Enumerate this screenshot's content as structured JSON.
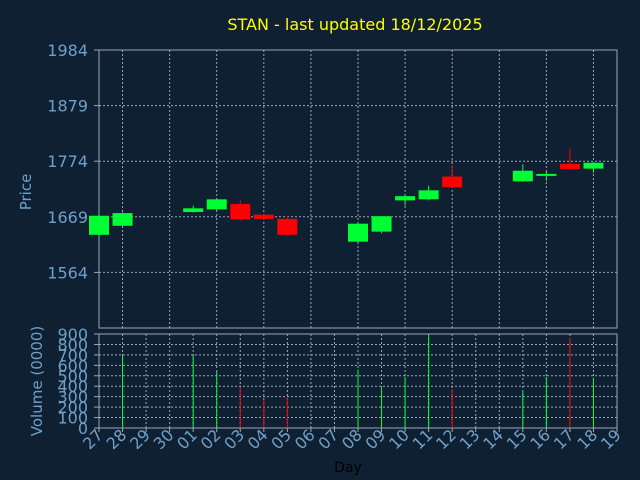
{
  "colors": {
    "background": "#0f2033",
    "title": "#ffff00",
    "axis_text": "#6fa0c8",
    "grid": "#9aa8b8",
    "up": "#00ff33",
    "down": "#ff0000"
  },
  "chart_data": [
    {
      "type": "candlestick",
      "title": "STAN - last updated 18/12/2025",
      "xlabel": "",
      "ylabel": "Price",
      "ylim": [
        1459,
        1984
      ],
      "yticks": [
        1564,
        1669,
        1774,
        1879,
        1984
      ],
      "grid": true,
      "x": [
        "27",
        "28",
        "29",
        "30",
        "01",
        "02",
        "03",
        "04",
        "05",
        "06",
        "07",
        "08",
        "09",
        "10",
        "11",
        "12",
        "13",
        "14",
        "15",
        "16",
        "17",
        "18",
        "19"
      ],
      "candles": [
        {
          "day": "27",
          "open": 1635,
          "close": 1671,
          "high": 1673,
          "low": 1633
        },
        {
          "day": "28",
          "open": 1652,
          "close": 1676,
          "high": 1677,
          "low": 1651
        },
        {
          "day": "01",
          "open": 1678,
          "close": 1685,
          "high": 1690,
          "low": 1677
        },
        {
          "day": "02",
          "open": 1683,
          "close": 1702,
          "high": 1704,
          "low": 1681
        },
        {
          "day": "03",
          "open": 1693,
          "close": 1664,
          "high": 1700,
          "low": 1662
        },
        {
          "day": "04",
          "open": 1673,
          "close": 1665,
          "high": 1674,
          "low": 1663
        },
        {
          "day": "05",
          "open": 1665,
          "close": 1635,
          "high": 1671,
          "low": 1634
        },
        {
          "day": "08",
          "open": 1622,
          "close": 1656,
          "high": 1659,
          "low": 1620
        },
        {
          "day": "09",
          "open": 1641,
          "close": 1670,
          "high": 1671,
          "low": 1638
        },
        {
          "day": "10",
          "open": 1700,
          "close": 1708,
          "high": 1710,
          "low": 1690
        },
        {
          "day": "11",
          "open": 1702,
          "close": 1719,
          "high": 1728,
          "low": 1700
        },
        {
          "day": "12",
          "open": 1745,
          "close": 1725,
          "high": 1766,
          "low": 1724
        },
        {
          "day": "15",
          "open": 1736,
          "close": 1756,
          "high": 1768,
          "low": 1735
        },
        {
          "day": "16",
          "open": 1748,
          "close": 1750,
          "high": 1755,
          "low": 1737
        },
        {
          "day": "17",
          "open": 1769,
          "close": 1759,
          "high": 1798,
          "low": 1758
        },
        {
          "day": "18",
          "open": 1760,
          "close": 1771,
          "high": 1772,
          "low": 1752
        }
      ]
    },
    {
      "type": "bar",
      "title": "",
      "xlabel": "Day",
      "ylabel": "Volume (0000)",
      "ylim": [
        0,
        900
      ],
      "yticks": [
        0,
        100,
        200,
        300,
        400,
        500,
        600,
        700,
        800,
        900
      ],
      "grid": true,
      "categories": [
        "27",
        "28",
        "29",
        "30",
        "01",
        "02",
        "03",
        "04",
        "05",
        "06",
        "07",
        "08",
        "09",
        "10",
        "11",
        "12",
        "13",
        "14",
        "15",
        "16",
        "17",
        "18",
        "19"
      ],
      "bars": [
        {
          "day": "28",
          "value": 690,
          "direction": "up"
        },
        {
          "day": "01",
          "value": 700,
          "direction": "up"
        },
        {
          "day": "02",
          "value": 540,
          "direction": "up"
        },
        {
          "day": "03",
          "value": 390,
          "direction": "down"
        },
        {
          "day": "04",
          "value": 270,
          "direction": "down"
        },
        {
          "day": "05",
          "value": 290,
          "direction": "down"
        },
        {
          "day": "08",
          "value": 560,
          "direction": "up"
        },
        {
          "day": "09",
          "value": 400,
          "direction": "up"
        },
        {
          "day": "10",
          "value": 490,
          "direction": "up"
        },
        {
          "day": "11",
          "value": 880,
          "direction": "up"
        },
        {
          "day": "12",
          "value": 370,
          "direction": "down"
        },
        {
          "day": "15",
          "value": 350,
          "direction": "up"
        },
        {
          "day": "16",
          "value": 490,
          "direction": "up"
        },
        {
          "day": "17",
          "value": 860,
          "direction": "down"
        },
        {
          "day": "18",
          "value": 480,
          "direction": "up"
        }
      ]
    }
  ]
}
